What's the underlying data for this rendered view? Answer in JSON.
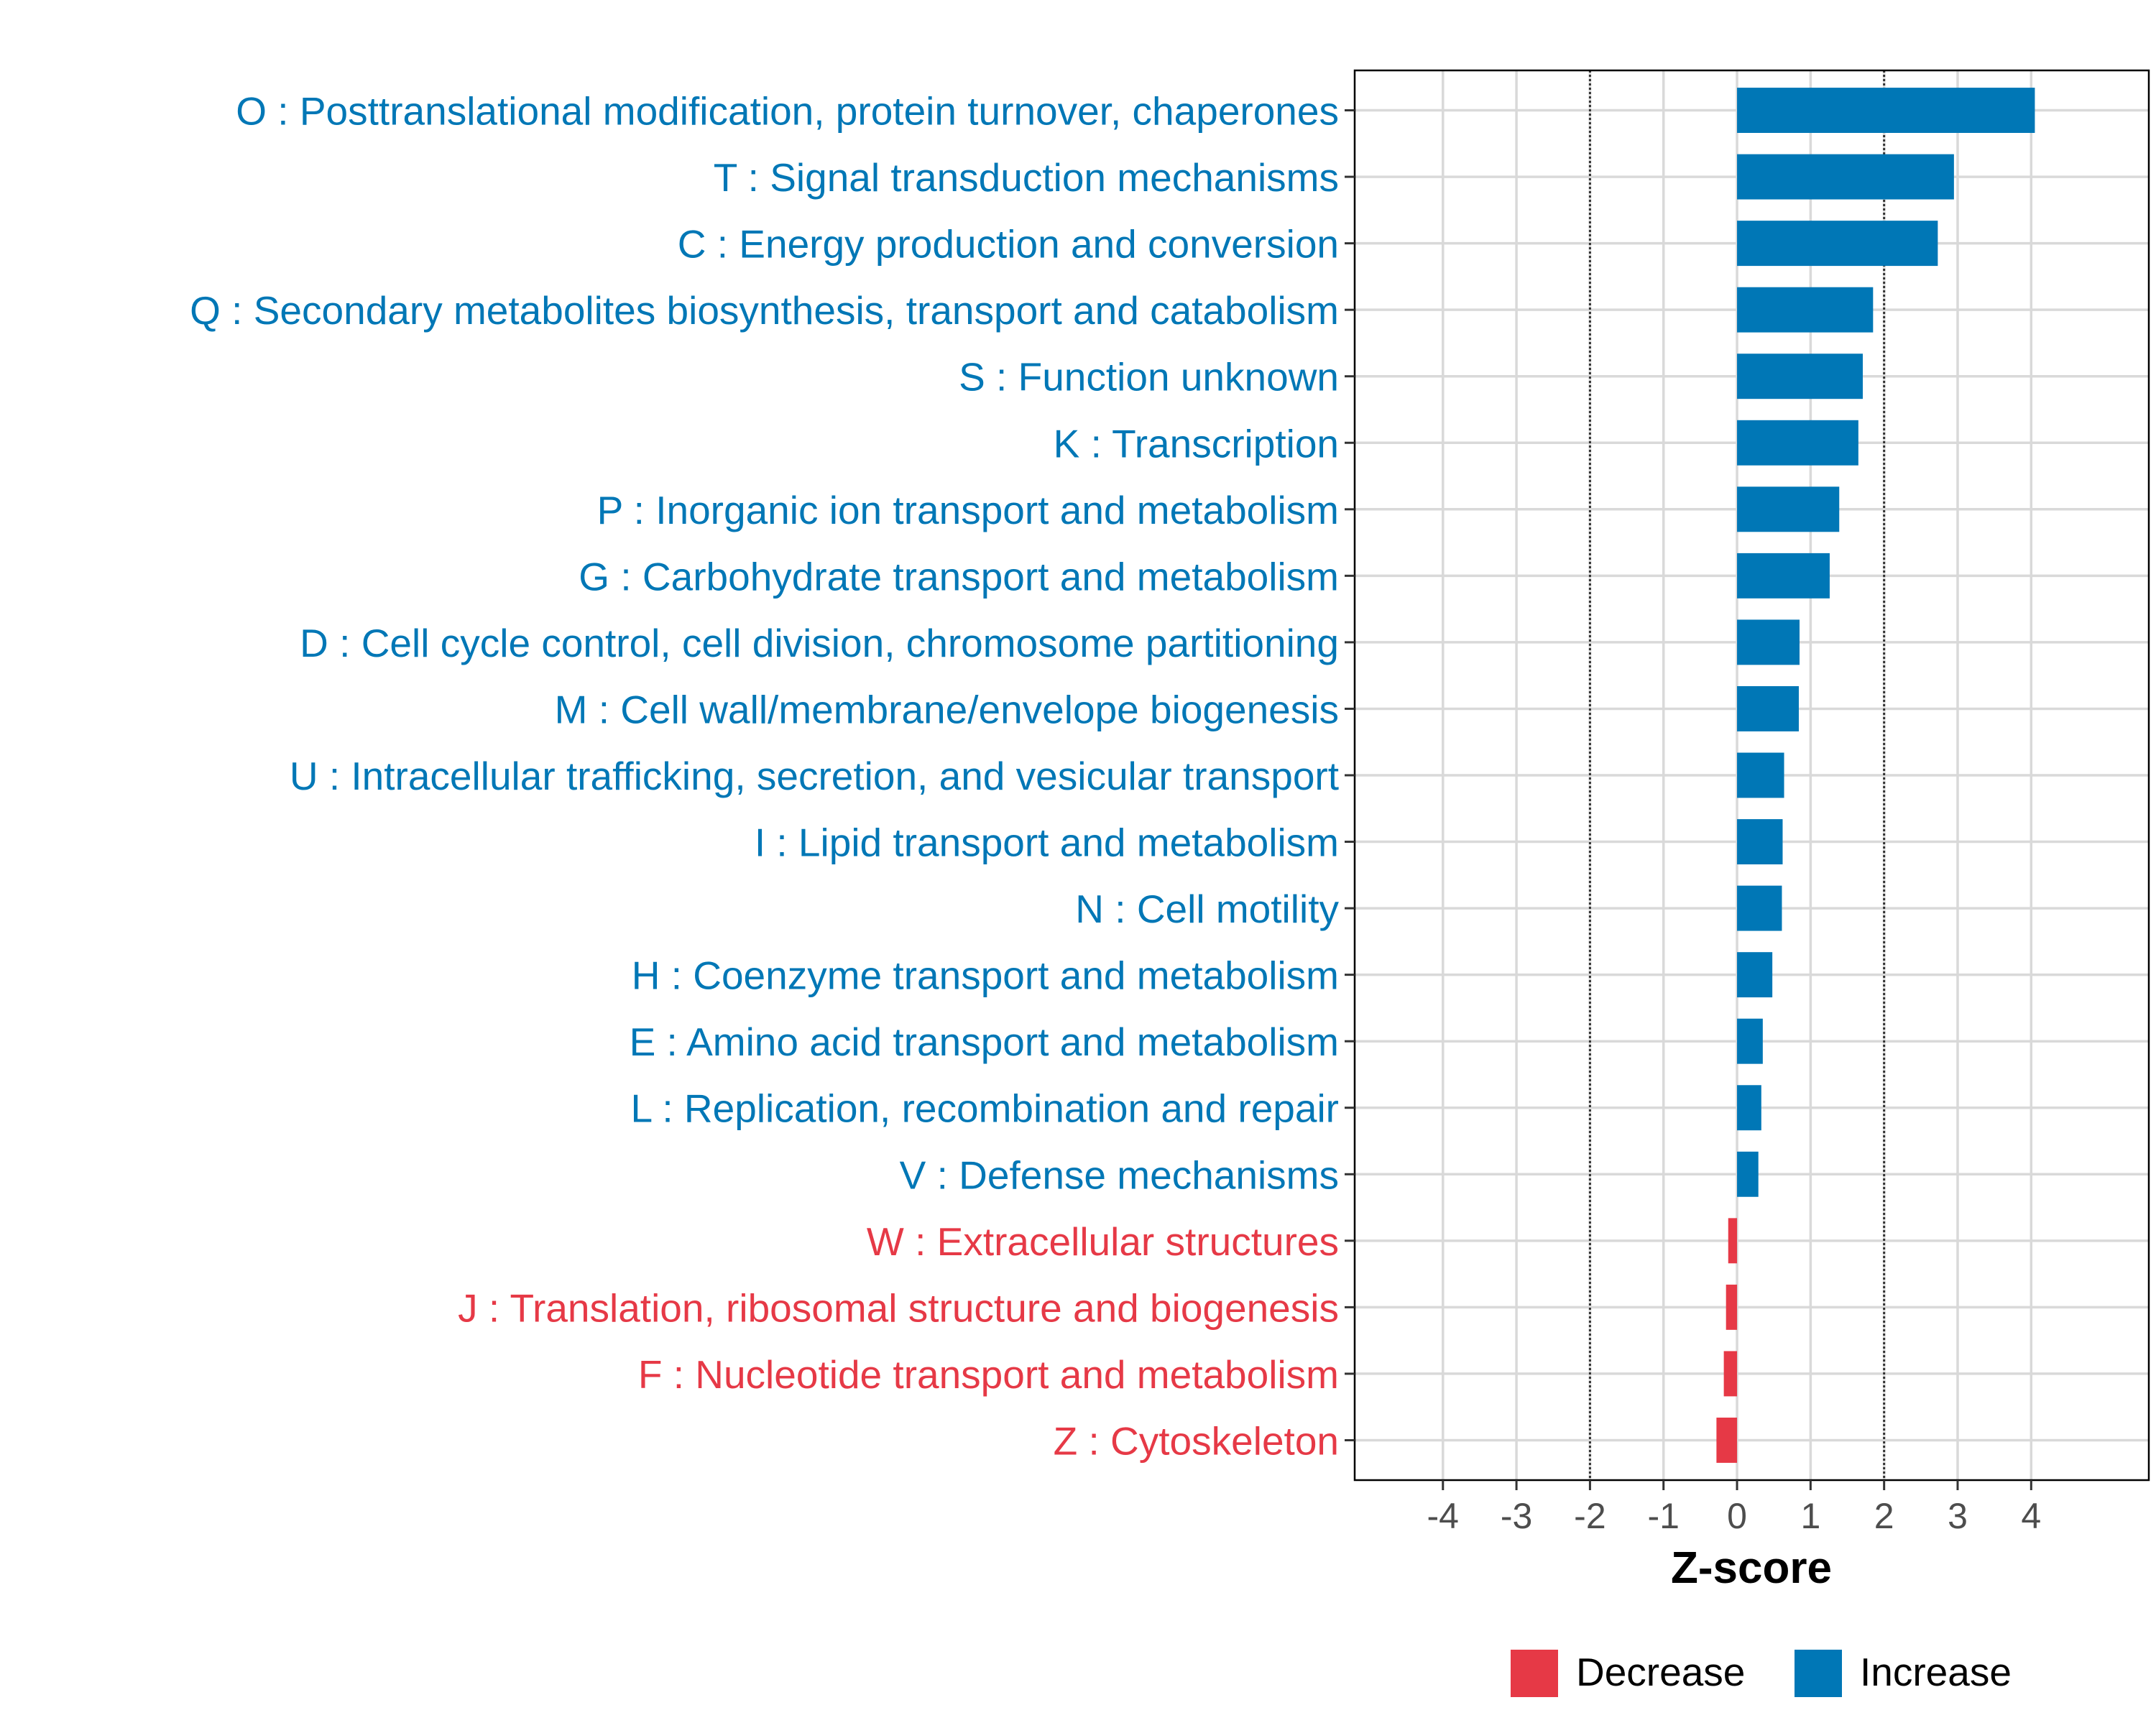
{
  "chart_data": {
    "type": "bar",
    "orientation": "horizontal",
    "title": "",
    "xlabel": "Z-score",
    "ylabel": "",
    "xlim": [
      -5.2,
      5.6
    ],
    "x_ticks": [
      -4,
      -3,
      -2,
      -1,
      0,
      1,
      2,
      3,
      4
    ],
    "x_tick_labels": [
      "-4",
      "-3",
      "-2",
      "-1",
      "0",
      "1",
      "2",
      "3",
      "4"
    ],
    "reference_lines": [
      -2,
      2
    ],
    "grid": true,
    "legend_position": "bottom",
    "colors": {
      "Increase": "#0077b6",
      "Decrease": "#e63946"
    },
    "legend": [
      {
        "label": "Decrease",
        "color": "#e63946"
      },
      {
        "label": "Increase",
        "color": "#0077b6"
      }
    ],
    "categories": [
      "O : Posttranslational modification, protein turnover, chaperones",
      "T : Signal transduction mechanisms",
      "C : Energy production and conversion",
      "Q : Secondary metabolites biosynthesis, transport and catabolism",
      "S : Function unknown",
      "K : Transcription",
      "P : Inorganic ion transport and metabolism",
      "G : Carbohydrate transport and metabolism",
      "D : Cell cycle control, cell division, chromosome partitioning",
      "M : Cell wall/membrane/envelope biogenesis",
      "U : Intracellular trafficking, secretion, and vesicular transport",
      "I : Lipid transport and metabolism",
      "N : Cell motility",
      "H : Coenzyme transport and metabolism",
      "E : Amino acid transport and metabolism",
      "L : Replication, recombination and repair",
      "V : Defense mechanisms",
      "W : Extracellular structures",
      "J : Translation, ribosomal structure and biogenesis",
      "F : Nucleotide transport and metabolism",
      "Z : Cytoskeleton"
    ],
    "values": [
      4.05,
      2.95,
      2.73,
      1.85,
      1.71,
      1.65,
      1.39,
      1.26,
      0.85,
      0.84,
      0.64,
      0.62,
      0.61,
      0.48,
      0.35,
      0.33,
      0.29,
      -0.12,
      -0.15,
      -0.18,
      -0.28
    ],
    "direction": [
      "Increase",
      "Increase",
      "Increase",
      "Increase",
      "Increase",
      "Increase",
      "Increase",
      "Increase",
      "Increase",
      "Increase",
      "Increase",
      "Increase",
      "Increase",
      "Increase",
      "Increase",
      "Increase",
      "Increase",
      "Decrease",
      "Decrease",
      "Decrease",
      "Decrease"
    ]
  }
}
